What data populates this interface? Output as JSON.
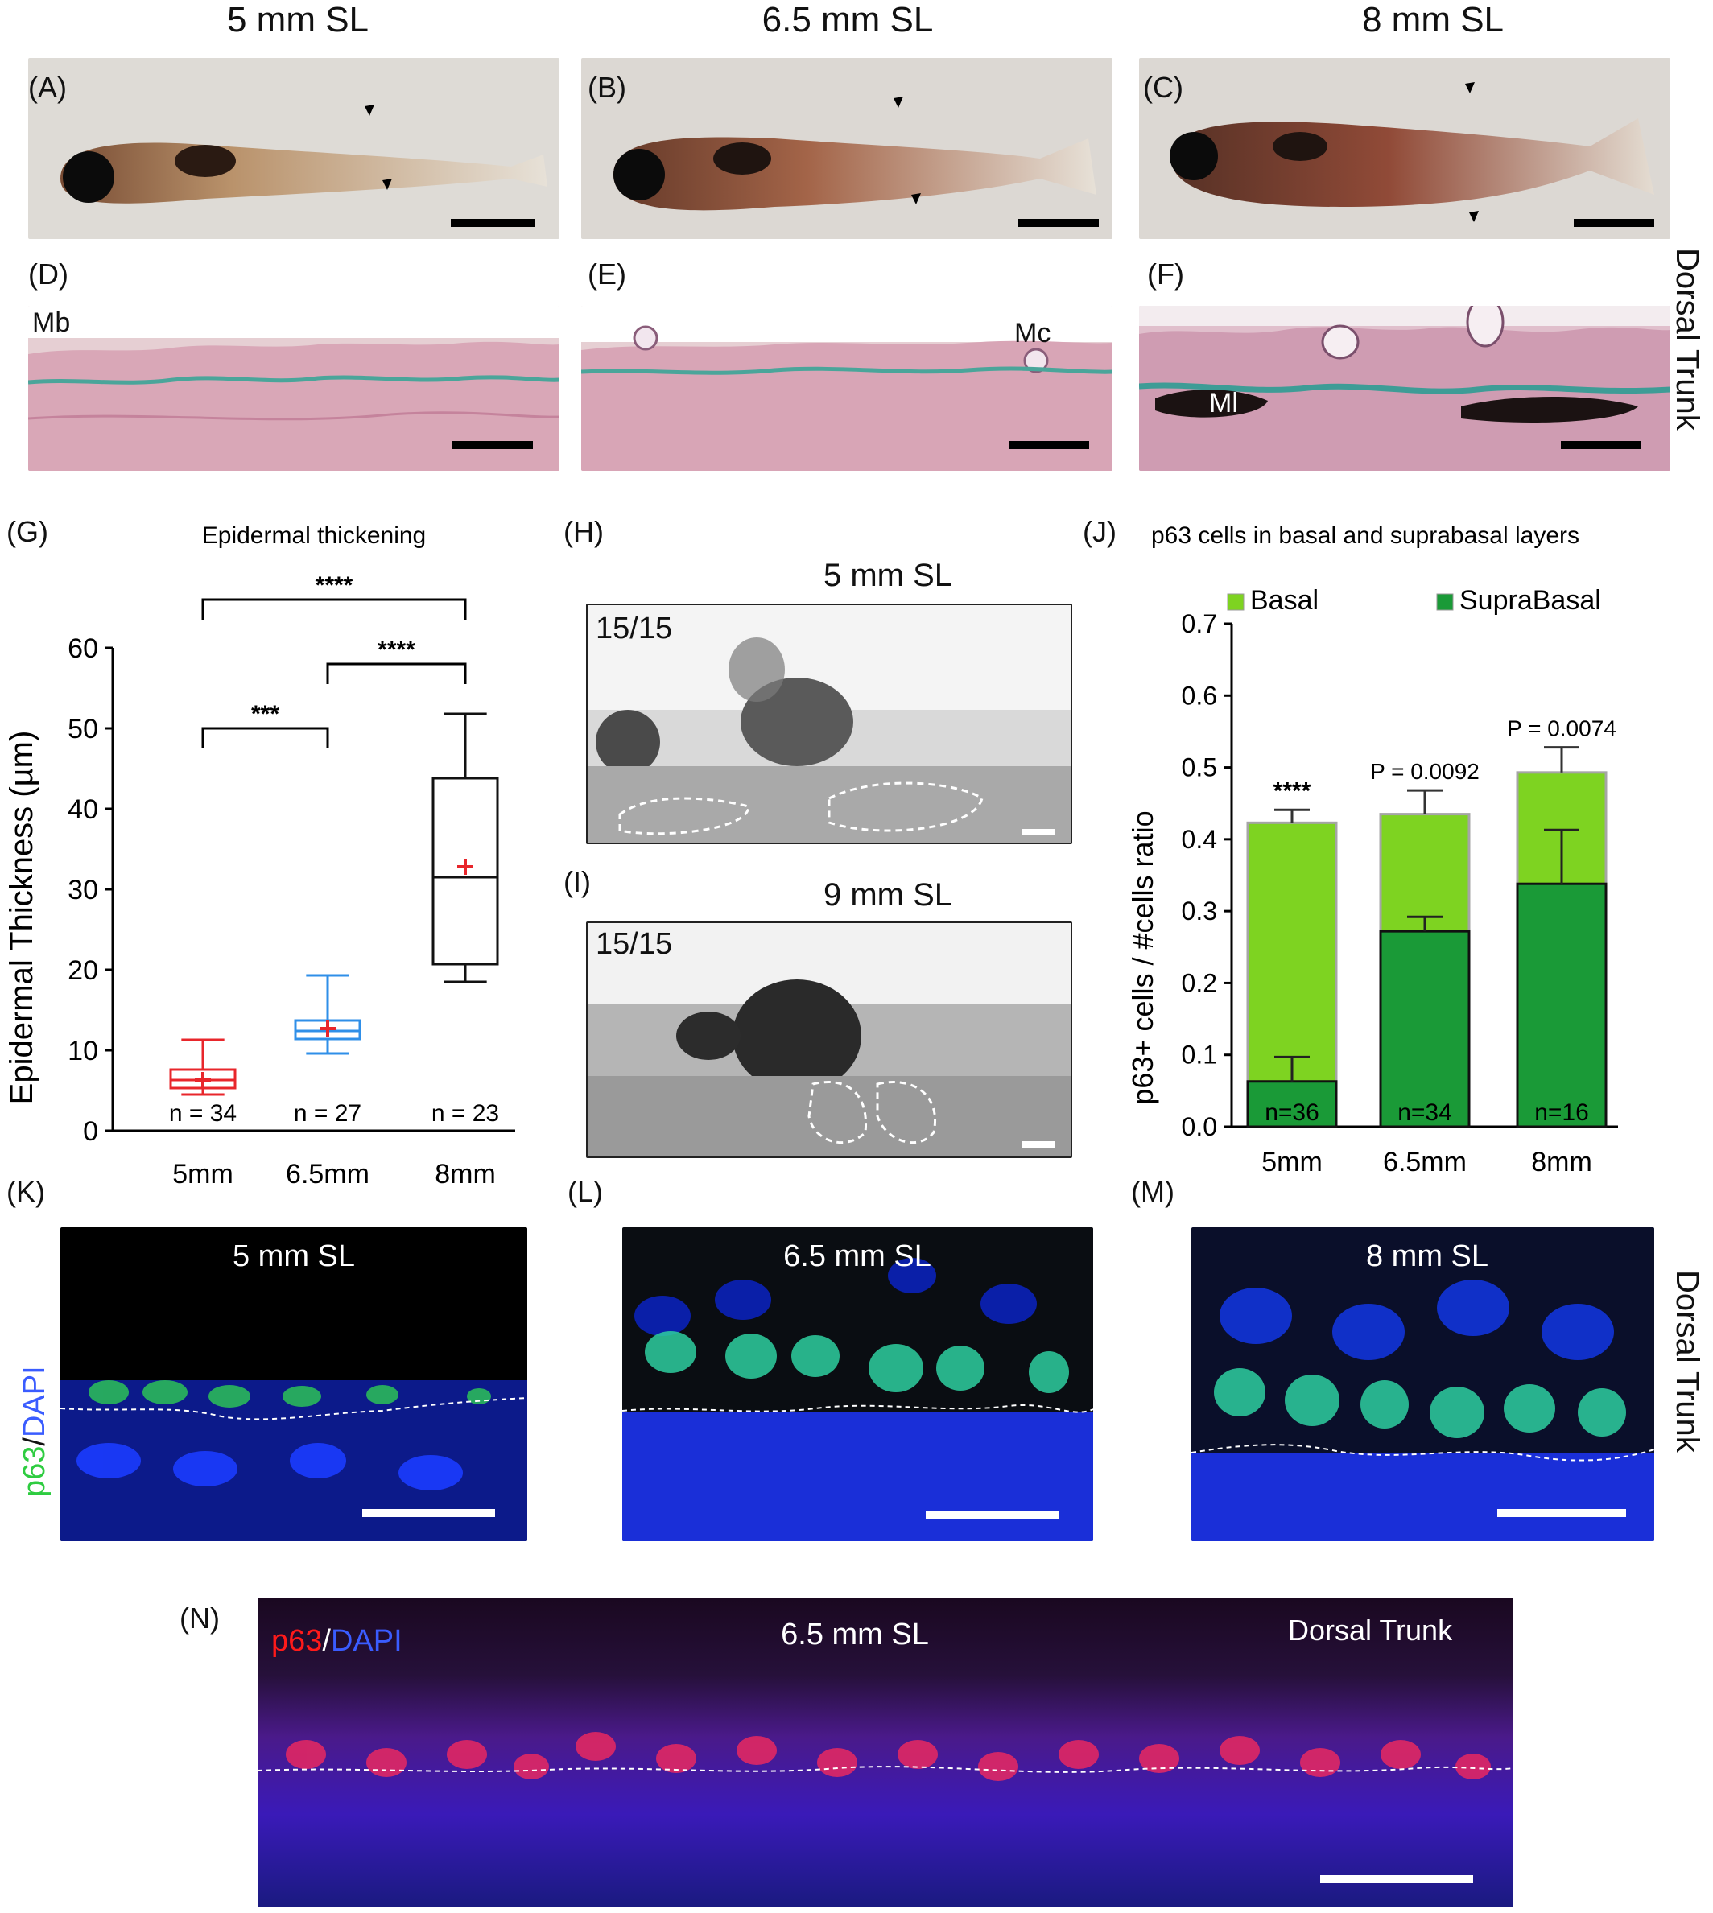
{
  "columns": {
    "col1": "5 mm SL",
    "col2": "6.5 mm SL",
    "col3": "8 mm SL"
  },
  "panels": {
    "A": "(A)",
    "B": "(B)",
    "C": "(C)",
    "D": "(D)",
    "E": "(E)",
    "F": "(F)",
    "G": "(G)",
    "H": "(H)",
    "I": "(I)",
    "J": "(J)",
    "K": "(K)",
    "L": "(L)",
    "M": "(M)",
    "N": "(N)"
  },
  "histology": {
    "D_label": "Mb",
    "E_label": "Mc",
    "F_label": "Ml",
    "side_label": "Dorsal Trunk"
  },
  "ish": {
    "H_title": "5 mm SL",
    "H_count": "15/15",
    "I_title": "9 mm SL",
    "I_count": "15/15"
  },
  "fluor": {
    "K_title": "5 mm SL",
    "L_title": "6.5 mm SL",
    "M_title": "8 mm SL",
    "stain_p63": "p63",
    "stain_sep": "/",
    "stain_dapi": "DAPI",
    "side_label": "Dorsal Trunk",
    "N_title": "6.5 mm SL",
    "N_region": "Dorsal Trunk"
  },
  "colors": {
    "box_5mm": "#e8262b",
    "box_65mm": "#2f8fe8",
    "box_8mm": "#111111",
    "basal": "#7ed321",
    "suprabasal": "#1a9a37",
    "p63_green": "#2ecc40",
    "dapi_blue": "#3a5cff",
    "p63_red": "#ff1a1a"
  },
  "chart_data": [
    {
      "type": "box",
      "title": "Epidermal thickening",
      "ylabel": "Epidermal Thickness (µm)",
      "xlabel": "",
      "ylim": [
        0,
        60
      ],
      "yticks": [
        "0",
        "10",
        "20",
        "30",
        "40",
        "50",
        "60"
      ],
      "categories": [
        "5mm",
        "6.5mm",
        "8mm"
      ],
      "boxes": [
        {
          "category": "5mm",
          "min": 4.5,
          "q1": 5.3,
          "median": 6.3,
          "q3": 7.6,
          "max": 11.3,
          "mean": 6.3,
          "n": "n = 34"
        },
        {
          "category": "6.5mm",
          "min": 9.6,
          "q1": 11.4,
          "median": 12.4,
          "q3": 13.7,
          "max": 19.3,
          "mean": 12.7,
          "n": "n = 27"
        },
        {
          "category": "8mm",
          "min": 18.5,
          "q1": 20.7,
          "median": 31.5,
          "q3": 43.8,
          "max": 51.8,
          "mean": 32.8,
          "n": "n = 23"
        }
      ],
      "significance": [
        {
          "from": "5mm",
          "to": "8mm",
          "label": "****"
        },
        {
          "from": "5mm",
          "to": "6.5mm",
          "label": "***"
        },
        {
          "from": "6.5mm",
          "to": "8mm",
          "label": "****"
        }
      ]
    },
    {
      "type": "bar",
      "title": "p63 cells in basal and suprabasal layers",
      "ylabel": "p63+ cells / #cells ratio",
      "xlabel": "",
      "ylim": [
        0,
        0.7
      ],
      "yticks": [
        "0.0",
        "0.1",
        "0.2",
        "0.3",
        "0.4",
        "0.5",
        "0.6",
        "0.7"
      ],
      "categories": [
        "5mm",
        "6.5mm",
        "8mm"
      ],
      "legend": [
        "Basal",
        "SupraBasal"
      ],
      "series": [
        {
          "name": "Basal",
          "values": [
            0.423,
            0.435,
            0.493
          ],
          "errors": [
            0.018,
            0.033,
            0.035
          ]
        },
        {
          "name": "SupraBasal",
          "values": [
            0.063,
            0.272,
            0.338
          ],
          "errors": [
            0.034,
            0.02,
            0.075
          ]
        }
      ],
      "n_labels": [
        "n=36",
        "n=34",
        "n=16"
      ],
      "annotations": [
        "****",
        "P = 0.0092",
        "P = 0.0074"
      ]
    }
  ]
}
